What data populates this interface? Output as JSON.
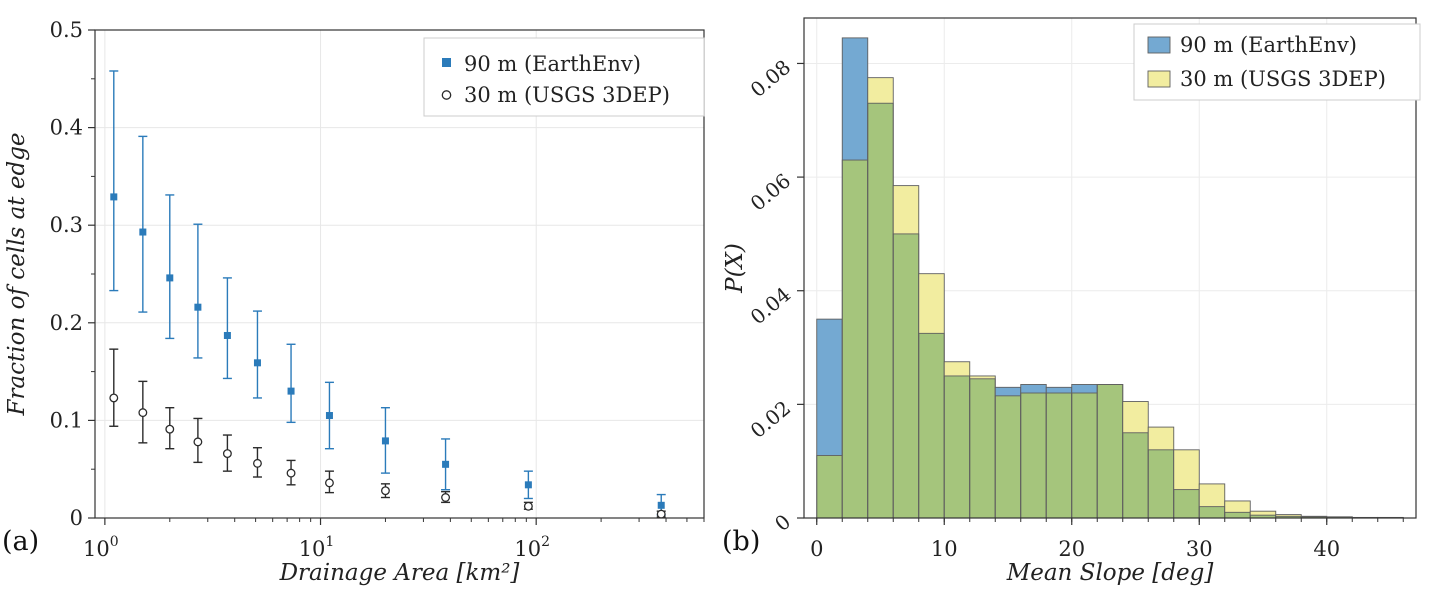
{
  "figure": {
    "background": "#ffffff"
  },
  "chart_data": [
    {
      "type": "scatter",
      "subtype": "errorbar",
      "panel_label": "(a)",
      "xlabel": "Drainage Area [km²]",
      "ylabel": "Fraction of cells at edge",
      "xscale": "log",
      "xlim": [
        0.9,
        600
      ],
      "ylim": [
        0,
        0.5
      ],
      "yticks": [
        0,
        0.1,
        0.2,
        0.3,
        0.4,
        0.5
      ],
      "ytick_labels": [
        "0",
        "0.1",
        "0.2",
        "0.3",
        "0.4",
        "0.5"
      ],
      "xticks": [
        1,
        10,
        100
      ],
      "xtick_labels": [
        "10^0",
        "10^1",
        "10^2"
      ],
      "grid": true,
      "legend_position": "top-right",
      "series": [
        {
          "name": "90 m (EarthEnv)",
          "marker": "square",
          "color": "#2b7bba",
          "x": [
            1.1,
            1.5,
            2.0,
            2.7,
            3.7,
            5.1,
            7.3,
            11,
            20,
            38,
            92,
            380
          ],
          "y": [
            0.329,
            0.293,
            0.246,
            0.216,
            0.187,
            0.159,
            0.13,
            0.105,
            0.079,
            0.055,
            0.034,
            0.013
          ],
          "ylo": [
            0.233,
            0.211,
            0.184,
            0.164,
            0.143,
            0.123,
            0.098,
            0.071,
            0.046,
            0.029,
            0.02,
            0.003
          ],
          "yhi": [
            0.458,
            0.391,
            0.331,
            0.301,
            0.246,
            0.212,
            0.178,
            0.139,
            0.113,
            0.081,
            0.048,
            0.024
          ]
        },
        {
          "name": "30 m (USGS 3DEP)",
          "marker": "circle-open",
          "color": "#2b2b2b",
          "x": [
            1.1,
            1.5,
            2.0,
            2.7,
            3.7,
            5.1,
            7.3,
            11,
            20,
            38,
            92,
            380
          ],
          "y": [
            0.123,
            0.108,
            0.091,
            0.078,
            0.066,
            0.056,
            0.046,
            0.036,
            0.028,
            0.021,
            0.012,
            0.004
          ],
          "ylo": [
            0.094,
            0.077,
            0.071,
            0.057,
            0.048,
            0.042,
            0.034,
            0.026,
            0.021,
            0.016,
            0.009,
            0.001
          ],
          "yhi": [
            0.173,
            0.14,
            0.113,
            0.102,
            0.085,
            0.072,
            0.059,
            0.048,
            0.035,
            0.027,
            0.016,
            0.007
          ]
        }
      ]
    },
    {
      "type": "bar",
      "subtype": "histogram-overlay",
      "panel_label": "(b)",
      "xlabel": "Mean Slope [deg]",
      "ylabel": "P(X)",
      "xlim": [
        -1,
        47
      ],
      "ylim": [
        0,
        0.088
      ],
      "yticks": [
        0,
        0.02,
        0.04,
        0.06,
        0.08
      ],
      "ytick_labels": [
        "0",
        "0.02",
        "0.04",
        "0.06",
        "0.08"
      ],
      "xticks": [
        0,
        10,
        20,
        30,
        40
      ],
      "xtick_labels": [
        "0",
        "10",
        "20",
        "30",
        "40"
      ],
      "grid": true,
      "legend_position": "top-right",
      "overlap_color": "#a5c57c",
      "bin_edges": [
        0,
        2,
        4,
        6,
        8,
        10,
        12,
        14,
        16,
        18,
        20,
        22,
        24,
        26,
        28,
        30,
        32,
        34,
        36,
        38,
        40,
        42,
        44,
        46
      ],
      "series": [
        {
          "name": "90 m (EarthEnv)",
          "color": "#74a9d2",
          "values": [
            0.035,
            0.0845,
            0.073,
            0.05,
            0.0325,
            0.025,
            0.0245,
            0.023,
            0.0235,
            0.023,
            0.0235,
            0.0235,
            0.015,
            0.012,
            0.005,
            0.002,
            0.001,
            0.0005,
            0.0003,
            0.0002,
            0.0002,
            0.0001,
            0.0001
          ]
        },
        {
          "name": "30 m (USGS 3DEP)",
          "color": "#f2eda0",
          "values": [
            0.011,
            0.063,
            0.0775,
            0.0585,
            0.043,
            0.0275,
            0.025,
            0.0215,
            0.022,
            0.022,
            0.022,
            0.0235,
            0.0205,
            0.016,
            0.012,
            0.006,
            0.003,
            0.0012,
            0.0006,
            0.0003,
            0.0002,
            0.0001,
            0.0001
          ]
        }
      ]
    }
  ]
}
